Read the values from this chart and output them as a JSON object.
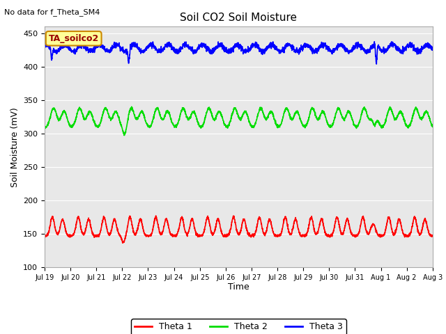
{
  "title": "Soil CO2 Soil Moisture",
  "ylabel": "Soil Moisture (mV)",
  "xlabel": "Time",
  "top_left_text": "No data for f_Theta_SM4",
  "annotation_box": "TA_soilco2",
  "ylim": [
    100,
    460
  ],
  "yticks": [
    100,
    150,
    200,
    250,
    300,
    350,
    400,
    450
  ],
  "x_labels": [
    "Jul 19",
    "Jul 20",
    "Jul 21",
    "Jul 22",
    "Jul 23",
    "Jul 24",
    "Jul 25",
    "Jul 26",
    "Jul 27",
    "Jul 28",
    "Jul 29",
    "Jul 30",
    "Jul 31",
    "Aug 1",
    "Aug 2",
    "Aug 3"
  ],
  "legend_labels": [
    "Theta 1",
    "Theta 2",
    "Theta 3"
  ],
  "color_theta1": "#ff0000",
  "color_theta2": "#00dd00",
  "color_theta3": "#0000ff",
  "bg_color": "#e8e8e8",
  "annotation_bg": "#ffff99",
  "annotation_border": "#cc8800",
  "annotation_text_color": "#990000",
  "theta1_base": 147,
  "theta2_base": 308,
  "theta3_base": 428,
  "linewidth": 1.2
}
